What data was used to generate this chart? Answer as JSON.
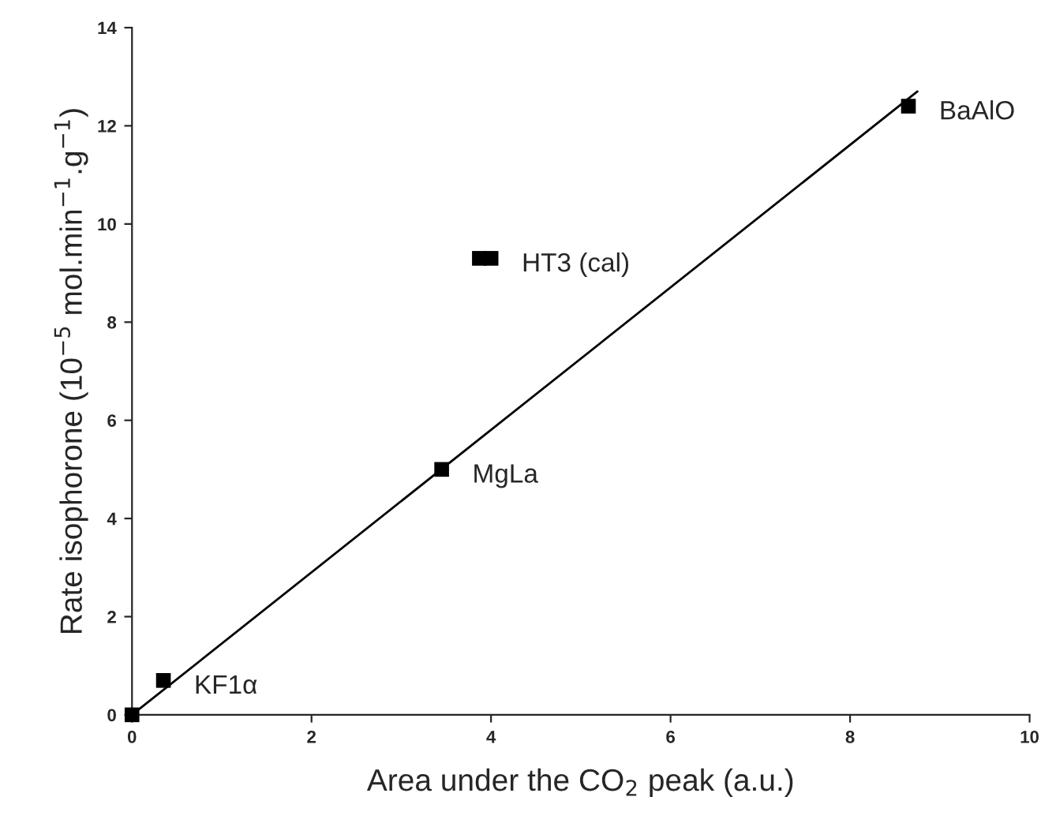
{
  "chart_data": {
    "type": "scatter",
    "xlabel": "Area under the CO$_{2}$ peak (a.u.)",
    "ylabel": "Rate isophorone (10$^{−5}$ mol.min$^{−1}$.g$^{−1}$)",
    "series": [
      {
        "color": "#000000",
        "marker": "square",
        "x": [
          0,
          0.35,
          3.45,
          3.87,
          4.0,
          8.65
        ],
        "values": [
          0,
          0.7,
          5.0,
          9.3,
          9.3,
          12.4
        ]
      },
      {
        "type": "line",
        "color": "#000000",
        "marker": "none",
        "line_style": "solid",
        "x": [
          0,
          8.75
        ],
        "values": [
          0,
          12.7
        ]
      }
    ],
    "annotations": [
      {
        "text": "KF1α",
        "x": 0.35,
        "y": 0.7
      },
      {
        "text": "MgLa",
        "x": 3.45,
        "y": 5.0
      },
      {
        "text": "HT3 (cal)",
        "x": 4.0,
        "y": 9.3
      },
      {
        "text": "BaAlO",
        "x": 8.65,
        "y": 12.4
      }
    ],
    "xlim": [
      0,
      10
    ],
    "xticks": [
      0,
      2,
      4,
      6,
      8,
      10
    ],
    "ylim": [
      0,
      14
    ],
    "yticks": [
      0,
      2,
      4,
      6,
      8,
      10,
      12,
      14
    ],
    "grid": false,
    "legend": false
  }
}
